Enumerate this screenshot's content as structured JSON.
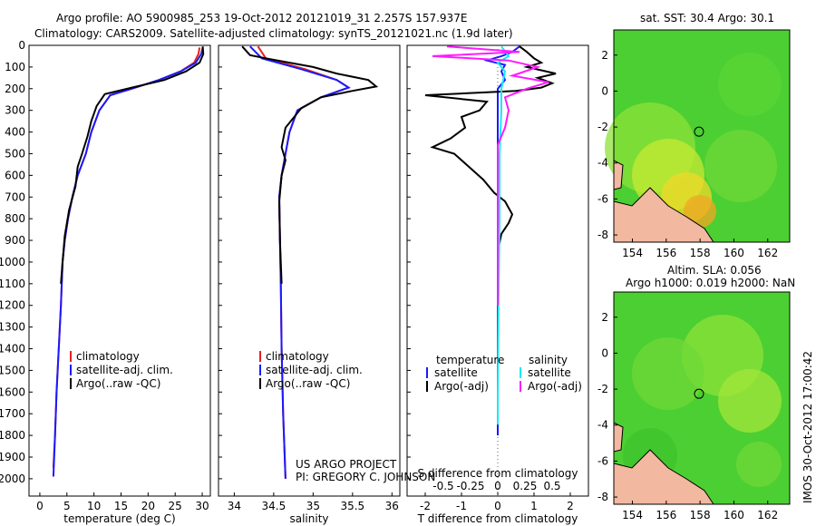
{
  "header": {
    "line1": "Argo profile: AO 5900985_253 19-Oct-2012 20121019_31 2.257S 157.937E",
    "line2": "Climatology: CARS2009. Satellite-adjusted climatology: synTS_20121021.nc (1.9d later)"
  },
  "colors": {
    "climatology": "#e8201c",
    "satellite": "#1a1aff",
    "argo": "#000000",
    "argo_adj": "#ff1aff",
    "sat_sal": "#1ae8f0",
    "land": "#f2b8a0"
  },
  "chart_data": [
    {
      "type": "line",
      "xlabel": "temperature (deg C)",
      "ylabel": "",
      "xlim": [
        -2,
        31.5
      ],
      "ylim": [
        2080,
        0
      ],
      "xticks": [
        0,
        5,
        10,
        15,
        20,
        25,
        30
      ],
      "yticks": [
        0,
        100,
        200,
        300,
        400,
        500,
        600,
        700,
        800,
        900,
        1000,
        1100,
        1200,
        1300,
        1400,
        1500,
        1600,
        1700,
        1800,
        1900,
        2000
      ],
      "legend": [
        "climatology",
        "satellite-adj. clim.",
        "Argo(..raw -QC)"
      ],
      "series": [
        {
          "name": "climatology",
          "values": [
            [
              29.5,
              10
            ],
            [
              29.3,
              40
            ],
            [
              28.5,
              80
            ],
            [
              26,
              120
            ],
            [
              22,
              160
            ],
            [
              17,
              200
            ],
            [
              13,
              230
            ],
            [
              11,
              300
            ],
            [
              9.5,
              400
            ],
            [
              8.5,
              500
            ],
            [
              7,
              600
            ],
            [
              6,
              700
            ],
            [
              5.2,
              800
            ],
            [
              4.6,
              900
            ],
            [
              4.2,
              1000
            ],
            [
              3.9,
              1200
            ],
            [
              3.5,
              1400
            ],
            [
              3.1,
              1600
            ],
            [
              2.8,
              1800
            ],
            [
              2.5,
              1950
            ]
          ]
        },
        {
          "name": "satellite-adj. clim.",
          "values": [
            [
              30.1,
              10
            ],
            [
              29.8,
              40
            ],
            [
              28.8,
              80
            ],
            [
              26,
              120
            ],
            [
              22,
              160
            ],
            [
              17,
              200
            ],
            [
              13,
              230
            ],
            [
              11,
              300
            ],
            [
              9.5,
              400
            ],
            [
              8.5,
              500
            ],
            [
              7,
              600
            ],
            [
              6,
              700
            ],
            [
              5.2,
              800
            ],
            [
              4.6,
              900
            ],
            [
              4.2,
              1000
            ],
            [
              3.9,
              1200
            ],
            [
              3.5,
              1400
            ],
            [
              3.1,
              1600
            ],
            [
              2.8,
              1800
            ],
            [
              2.5,
              1990
            ]
          ]
        },
        {
          "name": "Argo(..raw -QC)",
          "values": [
            [
              30.1,
              5
            ],
            [
              30.2,
              40
            ],
            [
              29.5,
              80
            ],
            [
              27,
              120
            ],
            [
              23,
              160
            ],
            [
              17,
              195
            ],
            [
              12,
              225
            ],
            [
              10.5,
              280
            ],
            [
              9.5,
              350
            ],
            [
              8.8,
              420
            ],
            [
              7.8,
              500
            ],
            [
              7,
              560
            ],
            [
              6.6,
              650
            ],
            [
              5.4,
              760
            ],
            [
              4.6,
              880
            ],
            [
              4.2,
              1000
            ],
            [
              3.9,
              1100
            ]
          ]
        }
      ]
    },
    {
      "type": "line",
      "xlabel": "salinity",
      "ylabel": "",
      "xlim": [
        33.8,
        36.1
      ],
      "ylim": [
        2080,
        0
      ],
      "xticks": [
        34,
        34.5,
        35,
        35.5,
        36
      ],
      "legend": [
        "climatology",
        "satellite-adj. clim.",
        "Argo(..raw -QC)"
      ],
      "series": [
        {
          "name": "climatology",
          "values": [
            [
              34.3,
              5
            ],
            [
              34.4,
              60
            ],
            [
              34.9,
              110
            ],
            [
              35.3,
              160
            ],
            [
              35.45,
              195
            ],
            [
              35.1,
              240
            ],
            [
              34.8,
              300
            ],
            [
              34.7,
              400
            ],
            [
              34.65,
              500
            ],
            [
              34.6,
              600
            ],
            [
              34.57,
              700
            ],
            [
              34.58,
              900
            ],
            [
              34.59,
              1100
            ],
            [
              34.6,
              1400
            ],
            [
              34.62,
              1700
            ],
            [
              34.65,
              2000
            ]
          ]
        },
        {
          "name": "satellite-adj. clim.",
          "values": [
            [
              34.2,
              5
            ],
            [
              34.35,
              60
            ],
            [
              34.85,
              110
            ],
            [
              35.3,
              160
            ],
            [
              35.45,
              195
            ],
            [
              35.1,
              240
            ],
            [
              34.8,
              300
            ],
            [
              34.7,
              400
            ],
            [
              34.65,
              500
            ],
            [
              34.6,
              600
            ],
            [
              34.57,
              700
            ],
            [
              34.58,
              900
            ],
            [
              34.59,
              1100
            ],
            [
              34.6,
              1400
            ],
            [
              34.62,
              1700
            ],
            [
              34.65,
              2000
            ]
          ]
        },
        {
          "name": "Argo(..raw -QC)",
          "values": [
            [
              34.1,
              5
            ],
            [
              34.2,
              45
            ],
            [
              34.4,
              60
            ],
            [
              34.7,
              80
            ],
            [
              35.0,
              100
            ],
            [
              35.3,
              130
            ],
            [
              35.7,
              160
            ],
            [
              35.8,
              190
            ],
            [
              35.5,
              210
            ],
            [
              35.1,
              240
            ],
            [
              34.85,
              290
            ],
            [
              34.65,
              380
            ],
            [
              34.6,
              470
            ],
            [
              34.65,
              530
            ],
            [
              34.6,
              600
            ],
            [
              34.57,
              720
            ],
            [
              34.58,
              900
            ],
            [
              34.6,
              1100
            ]
          ]
        }
      ],
      "annotation": [
        "US ARGO PROJECT",
        "PI: GREGORY C. JOHNSON"
      ]
    },
    {
      "type": "line",
      "xlabel": "T difference from climatology",
      "ylabel": "",
      "title_bottom": "S difference from climatology",
      "xlim": [
        -2.5,
        2.5
      ],
      "ylim": [
        2080,
        0
      ],
      "xticks_T": [
        "-2",
        "-1",
        "0",
        "1",
        "2"
      ],
      "xticks_S": [
        "-0.5",
        "-0.25",
        "0",
        "0.25",
        "0.5"
      ],
      "legend": {
        "temperature": [
          "satellite",
          "Argo(-adj)"
        ],
        "salinity": [
          "satellite",
          "Argo(-adj)"
        ]
      },
      "series": [
        {
          "name": "T satellite",
          "values": [
            [
              0.6,
              5
            ],
            [
              0.4,
              30
            ],
            [
              0.1,
              50
            ],
            [
              -0.3,
              70
            ],
            [
              0.2,
              90
            ],
            [
              0.1,
              120
            ],
            [
              0.2,
              160
            ],
            [
              0,
              200
            ],
            [
              0,
              400
            ],
            [
              0,
              800
            ],
            [
              0,
              1200
            ],
            [
              0,
              1600
            ],
            [
              0,
              1800
            ]
          ]
        },
        {
          "name": "T Argo(-adj)",
          "values": [
            [
              0.6,
              5
            ],
            [
              0.8,
              30
            ],
            [
              1.0,
              60
            ],
            [
              1.2,
              80
            ],
            [
              0.8,
              100
            ],
            [
              1.6,
              130
            ],
            [
              1.1,
              150
            ],
            [
              1.5,
              175
            ],
            [
              1.2,
              195
            ],
            [
              0.5,
              210
            ],
            [
              -2.0,
              230
            ],
            [
              -0.3,
              260
            ],
            [
              -0.5,
              300
            ],
            [
              -1.0,
              330
            ],
            [
              -0.9,
              380
            ],
            [
              -1.3,
              430
            ],
            [
              -1.8,
              470
            ],
            [
              -1.2,
              500
            ],
            [
              -0.8,
              560
            ],
            [
              -0.4,
              620
            ],
            [
              -0.1,
              680
            ],
            [
              0.2,
              720
            ],
            [
              0.4,
              780
            ],
            [
              0.3,
              820
            ],
            [
              0.1,
              870
            ],
            [
              0,
              950
            ],
            [
              0,
              1100
            ]
          ]
        },
        {
          "name": "S satellite",
          "values": [
            [
              0.1,
              5
            ],
            [
              0.3,
              50
            ],
            [
              0,
              80
            ],
            [
              0.2,
              120
            ],
            [
              0.1,
              200
            ],
            [
              0.1,
              300
            ],
            [
              0.05,
              500
            ],
            [
              0.05,
              800
            ],
            [
              0.02,
              1200
            ],
            [
              0,
              1600
            ],
            [
              0,
              1750
            ]
          ]
        },
        {
          "name": "S Argo(-adj)",
          "values": [
            [
              -1.4,
              5
            ],
            [
              0.6,
              30
            ],
            [
              -1.8,
              50
            ],
            [
              0.3,
              70
            ],
            [
              1.1,
              100
            ],
            [
              0.4,
              140
            ],
            [
              1.4,
              170
            ],
            [
              0.8,
              200
            ],
            [
              0.2,
              240
            ],
            [
              0.3,
              300
            ],
            [
              0.2,
              380
            ],
            [
              0,
              460
            ],
            [
              0,
              700
            ],
            [
              0,
              1000
            ],
            [
              0,
              1200
            ]
          ]
        }
      ]
    }
  ],
  "maps": [
    {
      "title": "sat. SST: 30.4  Argo: 30.1",
      "xticks": [
        "154",
        "156",
        "158",
        "160",
        "162"
      ],
      "yticks": [
        "2",
        "0",
        "-2",
        "-4",
        "-6",
        "-8"
      ]
    },
    {
      "title1": "Altim. SLA: 0.056",
      "title2": "Argo h1000: 0.019 h2000: NaN",
      "xticks": [
        "154",
        "156",
        "158",
        "160",
        "162"
      ],
      "yticks": [
        "2",
        "0",
        "-2",
        "-4",
        "-6",
        "-8"
      ]
    }
  ],
  "footer": {
    "stamp": "IMOS 30-Oct-2012 17:00:42"
  }
}
